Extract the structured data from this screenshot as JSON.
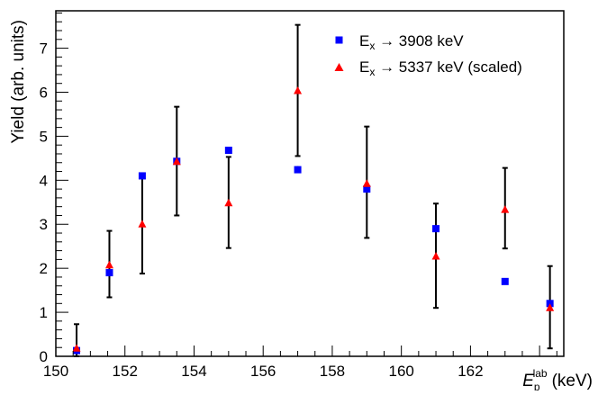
{
  "chart_data": {
    "type": "scatter",
    "title": "",
    "ylabel": "Yield (arb. units)",
    "xlabel_main": "E",
    "xlabel_sub": "p",
    "xlabel_sup": "lab",
    "xlabel_unit": "(keV)",
    "xlim": [
      150,
      164.7
    ],
    "ylim": [
      0,
      7.85
    ],
    "x_ticks": [
      150,
      152,
      154,
      156,
      158,
      160,
      162
    ],
    "x_tick_labels": [
      "150",
      "152",
      "154",
      "156",
      "158",
      "160",
      "162"
    ],
    "y_ticks": [
      0,
      1,
      2,
      3,
      4,
      5,
      6,
      7
    ],
    "y_tick_labels": [
      "0",
      "1",
      "2",
      "3",
      "4",
      "5",
      "6",
      "7"
    ],
    "grid": false,
    "legend_position": "top-right",
    "series": [
      {
        "legend_main": "E",
        "legend_sub": "x",
        "legend_rest": " → 3908 keV",
        "marker": "square",
        "color": "#0000ff",
        "points": [
          {
            "x": 150.6,
            "y": 0.13,
            "err": 0.04
          },
          {
            "x": 151.55,
            "y": 1.9,
            "err": 0.05
          },
          {
            "x": 152.5,
            "y": 4.1,
            "err": 0.06
          },
          {
            "x": 153.5,
            "y": 4.43,
            "err": 0.05
          },
          {
            "x": 155.0,
            "y": 4.68,
            "err": 0.05
          },
          {
            "x": 157.0,
            "y": 4.24,
            "err": 0.08
          },
          {
            "x": 159.0,
            "y": 3.8,
            "err": 0.05
          },
          {
            "x": 161.0,
            "y": 2.9,
            "err": 0.05
          },
          {
            "x": 163.0,
            "y": 1.7,
            "err": 0.04
          },
          {
            "x": 164.3,
            "y": 1.2,
            "err": 0.04
          }
        ]
      },
      {
        "legend_main": "E",
        "legend_sub": "x",
        "legend_rest": " → 5337 keV (scaled)",
        "marker": "triangle",
        "color": "#ff0000",
        "points": [
          {
            "x": 150.6,
            "y": 0.18,
            "err_low": 0.18,
            "err_high": 0.55
          },
          {
            "x": 151.55,
            "y": 2.07,
            "err_low": 0.73,
            "err_high": 0.78
          },
          {
            "x": 152.5,
            "y": 3.0,
            "err_low": 1.12,
            "err_high": 1.15
          },
          {
            "x": 153.5,
            "y": 4.42,
            "err_low": 1.22,
            "err_high": 1.25
          },
          {
            "x": 155.0,
            "y": 3.48,
            "err_low": 1.02,
            "err_high": 1.05
          },
          {
            "x": 157.0,
            "y": 6.03,
            "err_low": 1.48,
            "err_high": 1.5
          },
          {
            "x": 159.0,
            "y": 3.92,
            "err_low": 1.23,
            "err_high": 1.3
          },
          {
            "x": 161.0,
            "y": 2.27,
            "err_low": 1.17,
            "err_high": 1.2
          },
          {
            "x": 163.0,
            "y": 3.33,
            "err_low": 0.88,
            "err_high": 0.95
          },
          {
            "x": 164.3,
            "y": 1.1,
            "err_low": 0.92,
            "err_high": 0.95
          }
        ]
      }
    ]
  }
}
